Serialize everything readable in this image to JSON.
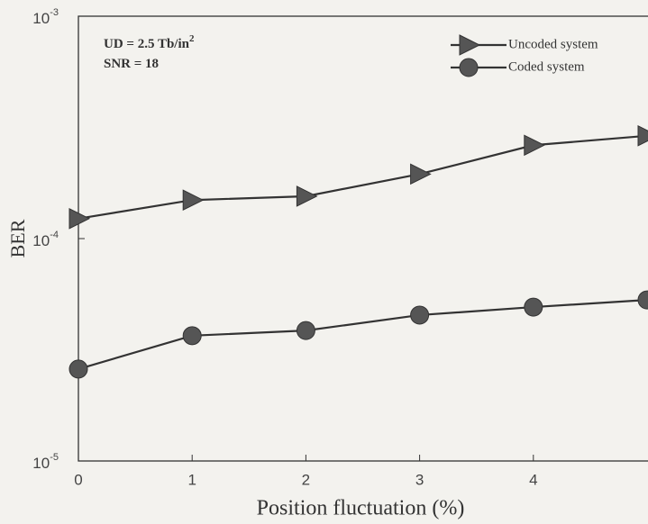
{
  "chart_data": {
    "type": "line",
    "x_label": "Position fluctuation (%)",
    "y_label": "BER",
    "annotations": [
      {
        "text": "UD = 2.5 Tb/in",
        "superscript": "2"
      },
      {
        "text": "SNR = 18"
      }
    ],
    "x": [
      0,
      1,
      2,
      3,
      4,
      5
    ],
    "xlim": [
      0,
      5
    ],
    "xticks": [
      0,
      1,
      2,
      3,
      4
    ],
    "ylim": [
      1e-05,
      0.001
    ],
    "yscale": "log",
    "yticks": [
      {
        "value": 1e-05,
        "label": "10",
        "exponent": "-5"
      },
      {
        "value": 0.0001,
        "label": "10",
        "exponent": "-4"
      },
      {
        "value": 0.001,
        "label": "10",
        "exponent": "-3"
      }
    ],
    "legend_position": "upper right",
    "series": [
      {
        "name": "Uncoded system",
        "color": "#555555",
        "marker": "triangle-right",
        "values": [
          0.000123,
          0.000149,
          0.000155,
          0.000195,
          0.000263,
          0.00029
        ]
      },
      {
        "name": "Coded system",
        "color": "#555555",
        "marker": "circle",
        "values": [
          2.59e-05,
          3.66e-05,
          3.86e-05,
          4.53e-05,
          4.92e-05,
          5.3e-05
        ]
      }
    ]
  }
}
